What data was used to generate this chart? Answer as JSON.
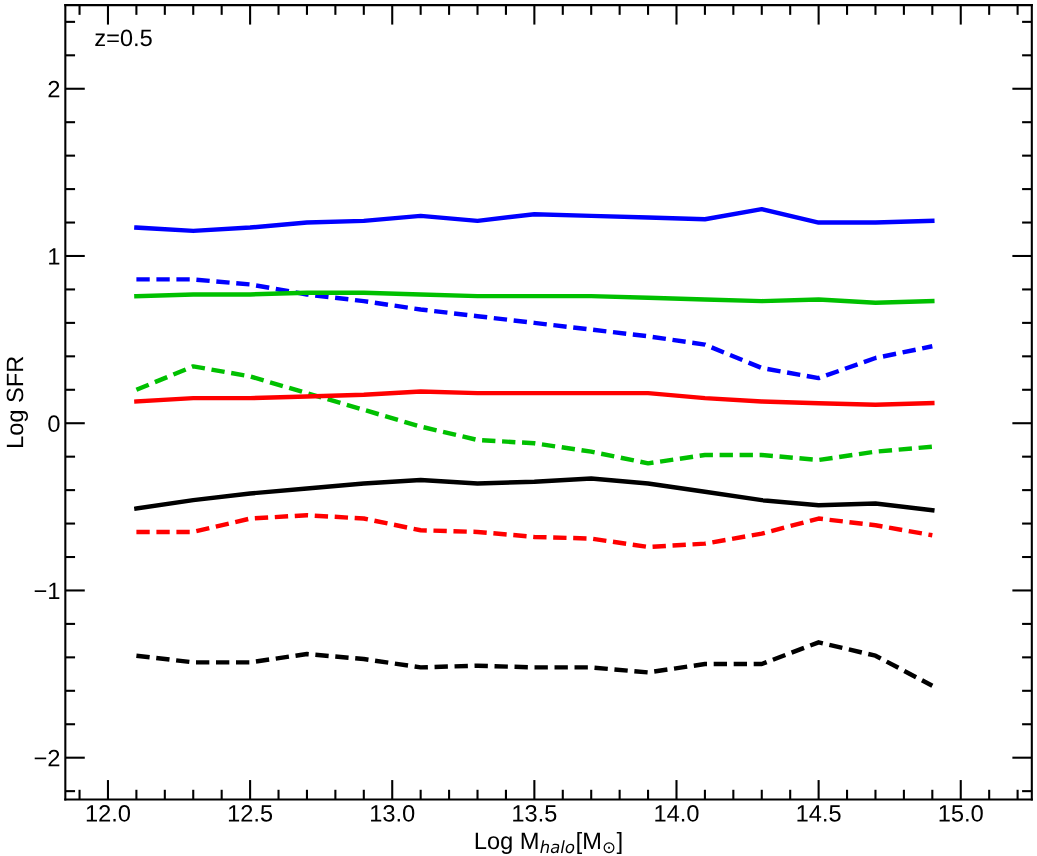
{
  "chart_data": {
    "type": "line",
    "xlabel": "Log M$_{halo}$[M$_{⊙}$]",
    "ylabel": "Log SFR",
    "annotations": [
      "z=0.5"
    ],
    "x": [
      12.1,
      12.3,
      12.5,
      12.7,
      12.9,
      13.1,
      13.3,
      13.5,
      13.7,
      13.9,
      14.1,
      14.3,
      14.5,
      14.7,
      14.9
    ],
    "series": [
      {
        "color": "#0000ff",
        "line_style": "solid",
        "values": [
          1.17,
          1.15,
          1.17,
          1.2,
          1.21,
          1.24,
          1.21,
          1.25,
          1.24,
          1.23,
          1.22,
          1.28,
          1.2,
          1.2,
          1.21
        ]
      },
      {
        "color": "#0000ff",
        "line_style": "dashed",
        "values": [
          0.86,
          0.86,
          0.83,
          0.77,
          0.73,
          0.68,
          0.64,
          0.6,
          0.56,
          0.52,
          0.47,
          0.33,
          0.27,
          0.39,
          0.46
        ]
      },
      {
        "color": "#00c000",
        "line_style": "solid",
        "values": [
          0.76,
          0.77,
          0.77,
          0.78,
          0.78,
          0.77,
          0.76,
          0.76,
          0.76,
          0.75,
          0.74,
          0.73,
          0.74,
          0.72,
          0.73
        ]
      },
      {
        "color": "#00c000",
        "line_style": "dashed",
        "values": [
          0.2,
          0.34,
          0.28,
          0.18,
          0.08,
          -0.02,
          -0.1,
          -0.12,
          -0.17,
          -0.24,
          -0.19,
          -0.19,
          -0.22,
          -0.17,
          -0.14
        ]
      },
      {
        "color": "#ff0000",
        "line_style": "solid",
        "values": [
          0.13,
          0.15,
          0.15,
          0.16,
          0.17,
          0.19,
          0.18,
          0.18,
          0.18,
          0.18,
          0.15,
          0.13,
          0.12,
          0.11,
          0.12
        ]
      },
      {
        "color": "#000000",
        "line_style": "solid",
        "values": [
          -0.51,
          -0.46,
          -0.42,
          -0.39,
          -0.36,
          -0.34,
          -0.36,
          -0.35,
          -0.33,
          -0.36,
          -0.41,
          -0.46,
          -0.49,
          -0.48,
          -0.52
        ]
      },
      {
        "color": "#ff0000",
        "line_style": "dashed",
        "values": [
          -0.65,
          -0.65,
          -0.57,
          -0.55,
          -0.57,
          -0.64,
          -0.65,
          -0.68,
          -0.69,
          -0.74,
          -0.72,
          -0.66,
          -0.57,
          -0.61,
          -0.67
        ]
      },
      {
        "color": "#000000",
        "line_style": "dashed",
        "values": [
          -1.39,
          -1.43,
          -1.43,
          -1.38,
          -1.41,
          -1.46,
          -1.45,
          -1.46,
          -1.46,
          -1.49,
          -1.44,
          -1.44,
          -1.31,
          -1.39,
          -1.57
        ]
      }
    ],
    "xlim": [
      11.85,
      15.25
    ],
    "ylim": [
      -2.25,
      2.5
    ],
    "xticks": [
      {
        "value": 12,
        "label": "12.0"
      },
      12.5,
      {
        "value": 13,
        "label": "13.0"
      },
      13.5,
      {
        "value": 14,
        "label": "14.0"
      },
      14.5,
      {
        "value": 15,
        "label": "15.0"
      }
    ],
    "yticks": [
      {
        "value": -2,
        "label": "−2"
      },
      {
        "value": -1,
        "label": "−1"
      },
      0,
      1,
      2
    ],
    "grid": false,
    "legend": false
  }
}
